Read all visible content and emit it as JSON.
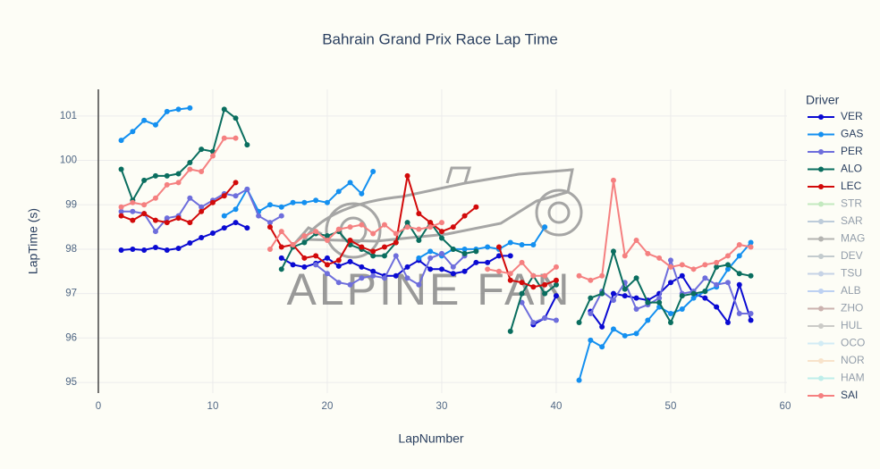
{
  "chart_data": {
    "type": "line",
    "title": "Bahrain Grand Prix Race Lap Time",
    "x_label": "LapNumber",
    "y_label": "LapTime (s)",
    "legend_title": "Driver",
    "legend_position": "right",
    "watermark": "ALPINE FAN",
    "grid": true,
    "xlim": [
      -2.34,
      60.16
    ],
    "ylim": [
      94.76,
      101.6
    ],
    "xticks": [
      0,
      10,
      20,
      30,
      40,
      50,
      60
    ],
    "yticks": [
      95,
      96,
      97,
      98,
      99,
      100,
      101
    ],
    "x": [
      2,
      3,
      4,
      5,
      6,
      7,
      8,
      9,
      10,
      11,
      12,
      13,
      14,
      15,
      16,
      17,
      18,
      19,
      20,
      21,
      22,
      23,
      24,
      25,
      26,
      27,
      28,
      29,
      30,
      31,
      32,
      33,
      34,
      35,
      36,
      37,
      38,
      39,
      40,
      41,
      42,
      43,
      44,
      45,
      46,
      47,
      48,
      49,
      50,
      51,
      52,
      53,
      54,
      55,
      56,
      57
    ],
    "series": [
      {
        "name": "VER",
        "color": "#0a0ad2",
        "values": [
          97.98,
          98.0,
          97.98,
          98.04,
          97.98,
          98.02,
          98.14,
          98.26,
          98.36,
          98.48,
          98.6,
          98.48,
          null,
          null,
          97.8,
          97.65,
          97.6,
          97.68,
          97.8,
          97.62,
          97.72,
          97.6,
          97.5,
          97.4,
          97.4,
          97.6,
          97.75,
          97.55,
          97.55,
          97.45,
          97.5,
          97.7,
          97.7,
          97.85,
          97.85,
          null,
          96.3,
          96.45,
          96.95,
          null,
          null,
          96.6,
          96.25,
          97.0,
          96.95,
          96.9,
          96.85,
          97.0,
          97.25,
          97.4,
          97.0,
          96.9,
          96.7,
          96.35,
          97.2,
          96.4
        ]
      },
      {
        "name": "GAS",
        "color": "#1490f0",
        "values": [
          100.45,
          100.65,
          100.9,
          100.8,
          101.1,
          101.15,
          101.18,
          null,
          null,
          98.75,
          98.9,
          99.35,
          98.85,
          99.0,
          98.95,
          99.05,
          99.05,
          99.1,
          99.05,
          99.3,
          99.5,
          99.25,
          99.75,
          null,
          null,
          null,
          97.8,
          97.95,
          97.85,
          98.0,
          98.0,
          98.0,
          98.05,
          98.0,
          98.15,
          98.1,
          98.1,
          98.5,
          null,
          null,
          95.05,
          95.95,
          95.8,
          96.2,
          96.05,
          96.1,
          96.4,
          96.7,
          96.55,
          96.65,
          96.9,
          97.05,
          97.15,
          97.55,
          97.85,
          98.15
        ]
      },
      {
        "name": "PER",
        "color": "#6e6edc",
        "values": [
          98.85,
          98.85,
          98.8,
          98.4,
          98.7,
          98.75,
          99.15,
          98.95,
          99.1,
          99.25,
          99.2,
          99.35,
          98.75,
          98.6,
          98.75,
          null,
          null,
          97.65,
          97.45,
          97.25,
          97.2,
          97.35,
          97.4,
          97.35,
          97.85,
          97.35,
          97.2,
          97.8,
          97.9,
          97.6,
          97.85,
          null,
          null,
          null,
          null,
          96.8,
          96.35,
          96.45,
          96.4,
          null,
          null,
          96.55,
          97.05,
          96.85,
          97.25,
          96.65,
          96.75,
          96.9,
          97.75,
          97.0,
          97.05,
          97.35,
          97.2,
          97.25,
          96.55,
          96.55
        ]
      },
      {
        "name": "ALO",
        "color": "#0a6e5f",
        "values": [
          99.8,
          99.1,
          99.55,
          99.65,
          99.65,
          99.7,
          99.95,
          100.25,
          100.2,
          101.15,
          100.95,
          100.35,
          null,
          null,
          97.55,
          98.05,
          98.15,
          98.35,
          98.3,
          98.4,
          98.1,
          98.0,
          97.85,
          97.85,
          98.15,
          98.6,
          98.2,
          98.6,
          98.25,
          98.0,
          97.9,
          97.95,
          null,
          null,
          96.15,
          97.0,
          97.4,
          97.0,
          97.2,
          null,
          96.35,
          96.9,
          97.0,
          97.95,
          97.1,
          97.35,
          96.8,
          96.8,
          96.35,
          96.95,
          97.0,
          97.05,
          97.6,
          97.65,
          97.45,
          97.4
        ]
      },
      {
        "name": "LEC",
        "color": "#d20a0a",
        "values": [
          98.75,
          98.65,
          98.8,
          98.65,
          98.6,
          98.7,
          98.6,
          98.85,
          99.05,
          99.2,
          99.5,
          null,
          null,
          98.5,
          98.05,
          98.1,
          97.8,
          97.85,
          97.65,
          97.75,
          98.2,
          98.05,
          97.95,
          98.05,
          98.15,
          99.65,
          98.8,
          98.6,
          98.4,
          98.5,
          98.75,
          98.95,
          null,
          98.05,
          97.3,
          97.25,
          97.15,
          97.2,
          97.3,
          null,
          null,
          null,
          null,
          null,
          null,
          null,
          null,
          null,
          null,
          null,
          null,
          null,
          null,
          null,
          null,
          null
        ]
      },
      {
        "name": "STR",
        "color": "#8ad78a",
        "visible": "legendonly"
      },
      {
        "name": "SAR",
        "color": "#7f9cc0",
        "visible": "legendonly"
      },
      {
        "name": "MAG",
        "color": "#6e6e6e",
        "visible": "legendonly"
      },
      {
        "name": "DEV",
        "color": "#8a9aa8",
        "visible": "legendonly"
      },
      {
        "name": "TSU",
        "color": "#90aad8",
        "visible": "legendonly"
      },
      {
        "name": "ALB",
        "color": "#7ea6f0",
        "visible": "legendonly"
      },
      {
        "name": "ZHO",
        "color": "#9a6a6a",
        "visible": "legendonly"
      },
      {
        "name": "HUL",
        "color": "#9a9a9a",
        "visible": "legendonly"
      },
      {
        "name": "OCO",
        "color": "#a8dcf5",
        "visible": "legendonly"
      },
      {
        "name": "NOR",
        "color": "#f5caa0",
        "visible": "legendonly"
      },
      {
        "name": "HAM",
        "color": "#80e0e0",
        "visible": "legendonly"
      },
      {
        "name": "SAI",
        "color": "#f58080",
        "values": [
          98.95,
          99.05,
          99.0,
          99.15,
          99.45,
          99.5,
          99.8,
          99.75,
          100.1,
          100.5,
          100.5,
          null,
          null,
          98.0,
          98.4,
          98.1,
          98.3,
          98.4,
          98.2,
          98.45,
          98.5,
          98.55,
          98.35,
          98.55,
          98.35,
          98.5,
          98.45,
          98.5,
          98.6,
          null,
          null,
          null,
          97.55,
          97.5,
          97.45,
          97.7,
          97.4,
          97.4,
          97.6,
          null,
          97.4,
          97.3,
          97.4,
          99.55,
          97.85,
          98.2,
          97.9,
          97.8,
          97.6,
          97.65,
          97.55,
          97.65,
          97.7,
          97.85,
          98.1,
          98.05
        ]
      }
    ]
  }
}
